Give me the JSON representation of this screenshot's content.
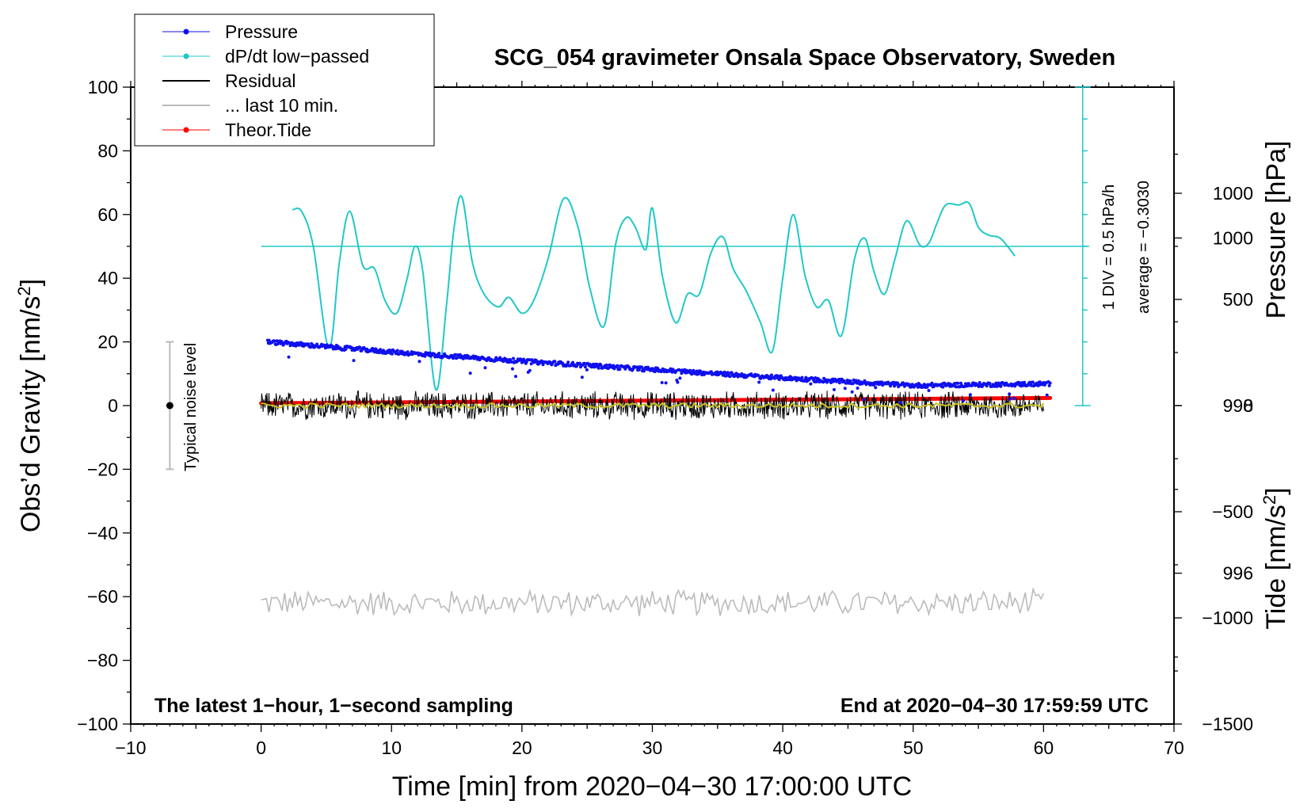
{
  "chart_data": {
    "type": "line",
    "title": "SCG_054 gravimeter Onsala Space Observatory, Sweden",
    "xlabel": "Time [min] from 2020−04−30 17:00:00 UTC",
    "ylabel_left": "Obs’d Gravity [nm/s",
    "ylabel_left_sup": "2",
    "ylabel_left_close": "]",
    "ylabel_pressure": "Pressure [hPa]",
    "ylabel_tide": "Tide [nm/s",
    "ylabel_tide_sup": "2",
    "ylabel_tide_close": "]",
    "xlim": [
      -10,
      70
    ],
    "ylim": [
      -100,
      100
    ],
    "pressure_lim": [
      994.2,
      1001.8
    ],
    "tide_lim": [
      -1500,
      1500
    ],
    "x_ticks": [
      "−10",
      "0",
      "10",
      "20",
      "30",
      "40",
      "50",
      "60",
      "70"
    ],
    "y_ticks": [
      "100",
      "80",
      "60",
      "40",
      "20",
      "0",
      "−20",
      "−40",
      "−60",
      "−80",
      "−100"
    ],
    "pressure_ticks": [
      "1000",
      "998",
      "996"
    ],
    "tide_ticks": [
      "1000",
      "500",
      "0",
      "−500",
      "−1000",
      "−1500"
    ],
    "legend": {
      "position": "top-left",
      "entries": [
        "Pressure",
        "dP/dt low−passed",
        "Residual",
        "... last 10 min.",
        "Theor.Tide"
      ]
    },
    "annotations": {
      "bottom_left": "The latest 1−hour, 1−second sampling",
      "bottom_right": "End at 2020−04−30 17:59:59 UTC",
      "noise_label": "Typical noise level",
      "div_label": "1 DIV = 0.5 hPa/h",
      "average_label": "average = −0.3030"
    },
    "noise_bar": {
      "x": -7,
      "center": 0,
      "low": -20,
      "high": 20
    },
    "dpdt_zero_level": 50,
    "series": [
      {
        "name": "Pressure",
        "unit": "hPa",
        "color": "#1010ee",
        "x": [
          0.5,
          10,
          20,
          30,
          40,
          50,
          60.5
        ],
        "values": [
          998.76,
          998.64,
          998.53,
          998.43,
          998.33,
          998.24,
          998.26
        ]
      },
      {
        "name": "dP/dt low−passed",
        "unit": "nm/s2 axis",
        "color": "#20c8c8",
        "x": [
          2.4,
          3.1,
          4.0,
          5.2,
          6.0,
          6.8,
          7.8,
          8.7,
          9.5,
          10.4,
          11.2,
          11.8,
          12.4,
          13.4,
          14.2,
          14.8,
          15.4,
          16.2,
          17.1,
          18.2,
          19.0,
          20.0,
          20.9,
          22.0,
          23.2,
          24.3,
          25.2,
          26.3,
          27.2,
          28.0,
          28.7,
          29.5,
          30.0,
          30.8,
          31.8,
          32.7,
          33.6,
          34.5,
          35.4,
          36.2,
          37.2,
          38.3,
          39.2,
          40.0,
          40.8,
          41.7,
          42.6,
          43.5,
          44.5,
          45.5,
          46.3,
          47.0,
          47.8,
          48.6,
          49.5,
          50.5,
          51.2,
          51.8,
          52.5,
          53.5,
          54.3,
          55.0,
          55.8,
          56.7,
          57.8
        ],
        "values": [
          61.5,
          61,
          50,
          18,
          45,
          61,
          44,
          43,
          33,
          29,
          40,
          50,
          42,
          5,
          31,
          56,
          65.5,
          45,
          35,
          31,
          34,
          29,
          33,
          46,
          65,
          56,
          37,
          25,
          51,
          59,
          56,
          49,
          62,
          40,
          26,
          35,
          35,
          48,
          53,
          43,
          36,
          26,
          17,
          40,
          60,
          41,
          31,
          33,
          22,
          46,
          52.5,
          42,
          35,
          46,
          58,
          50.5,
          51,
          57,
          63,
          63,
          63.5,
          56,
          53.5,
          52.5,
          47
        ]
      },
      {
        "name": "Residual",
        "unit": "nm/s2",
        "color": "#000000",
        "x": [
          0,
          60
        ],
        "values": [
          0,
          0
        ],
        "amplitude": 5
      },
      {
        "name": "... last 10 min.",
        "unit": "nm/s2",
        "color": "#bbbbbb",
        "x": [
          0,
          60
        ],
        "values": [
          -62,
          -62
        ],
        "amplitude": 4.5
      },
      {
        "name": "Theor.Tide",
        "unit": "nm/s2",
        "color": "#ff0000",
        "x": [
          0,
          60.5
        ],
        "values": [
          11,
          36
        ]
      }
    ]
  }
}
